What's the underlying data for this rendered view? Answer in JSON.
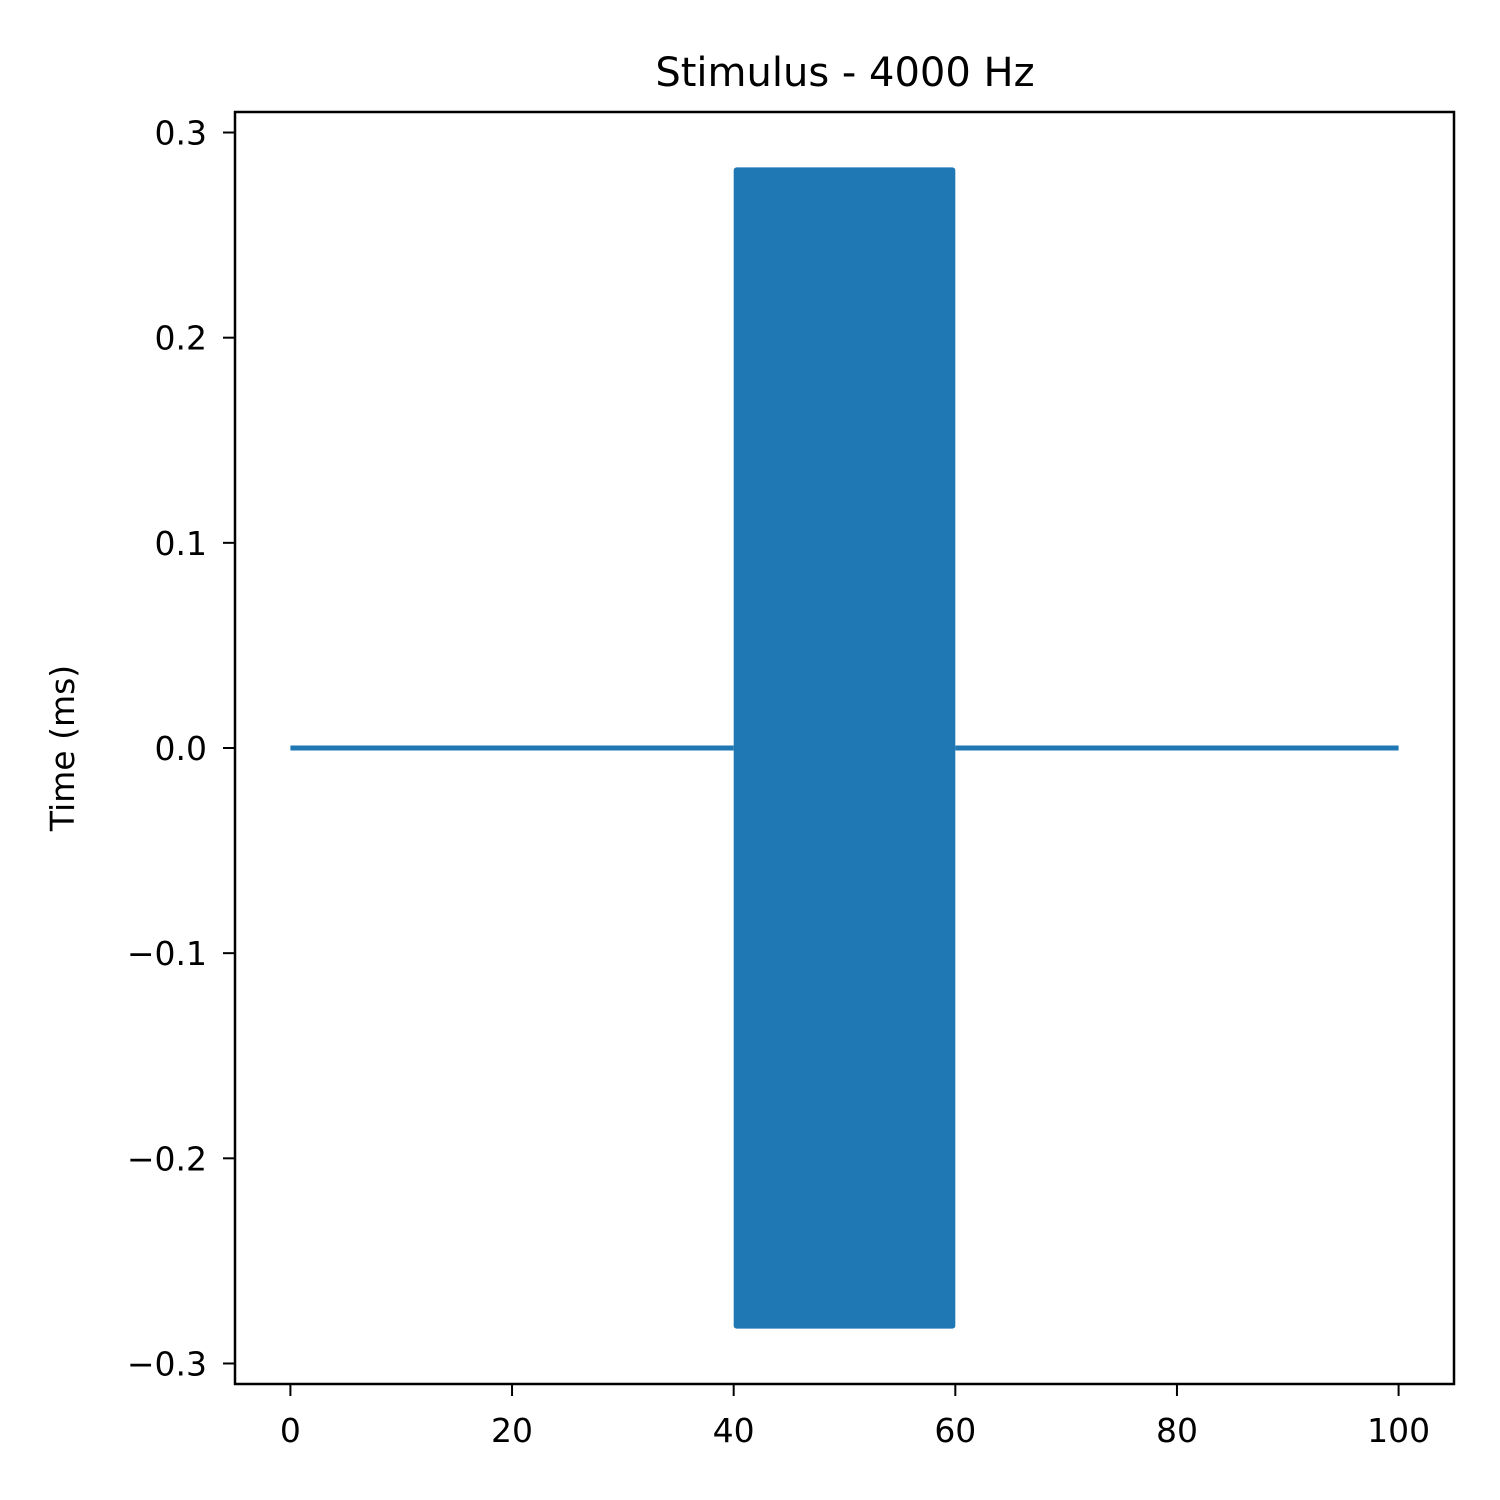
{
  "chart_data": {
    "type": "line",
    "title": "Stimulus - 4000 Hz",
    "xlabel": "",
    "ylabel": "Time (ms)",
    "xlim": [
      -5,
      105
    ],
    "ylim": [
      -0.31,
      0.31
    ],
    "x_ticks": [
      0,
      20,
      40,
      60,
      80,
      100
    ],
    "x_tick_labels": [
      "0",
      "20",
      "40",
      "60",
      "80",
      "100"
    ],
    "y_ticks": [
      0.3,
      0.2,
      0.1,
      0.0,
      -0.1,
      -0.2,
      -0.3
    ],
    "y_tick_labels": [
      "0.3",
      "0.2",
      "0.1",
      "0.0",
      "−0.1",
      "−0.2",
      "−0.3"
    ],
    "grid": false,
    "legend": "none",
    "series": [
      {
        "color": "#1f77b4",
        "baseline": [
          {
            "x": [
              0,
              40
            ],
            "y": [
              0,
              0
            ]
          },
          {
            "x": [
              60,
              100
            ],
            "y": [
              0,
              0
            ]
          }
        ],
        "tone_burst": {
          "x_start": 40,
          "x_end": 60,
          "amplitude": 0.283,
          "frequency_hz": 4000
        }
      }
    ]
  }
}
